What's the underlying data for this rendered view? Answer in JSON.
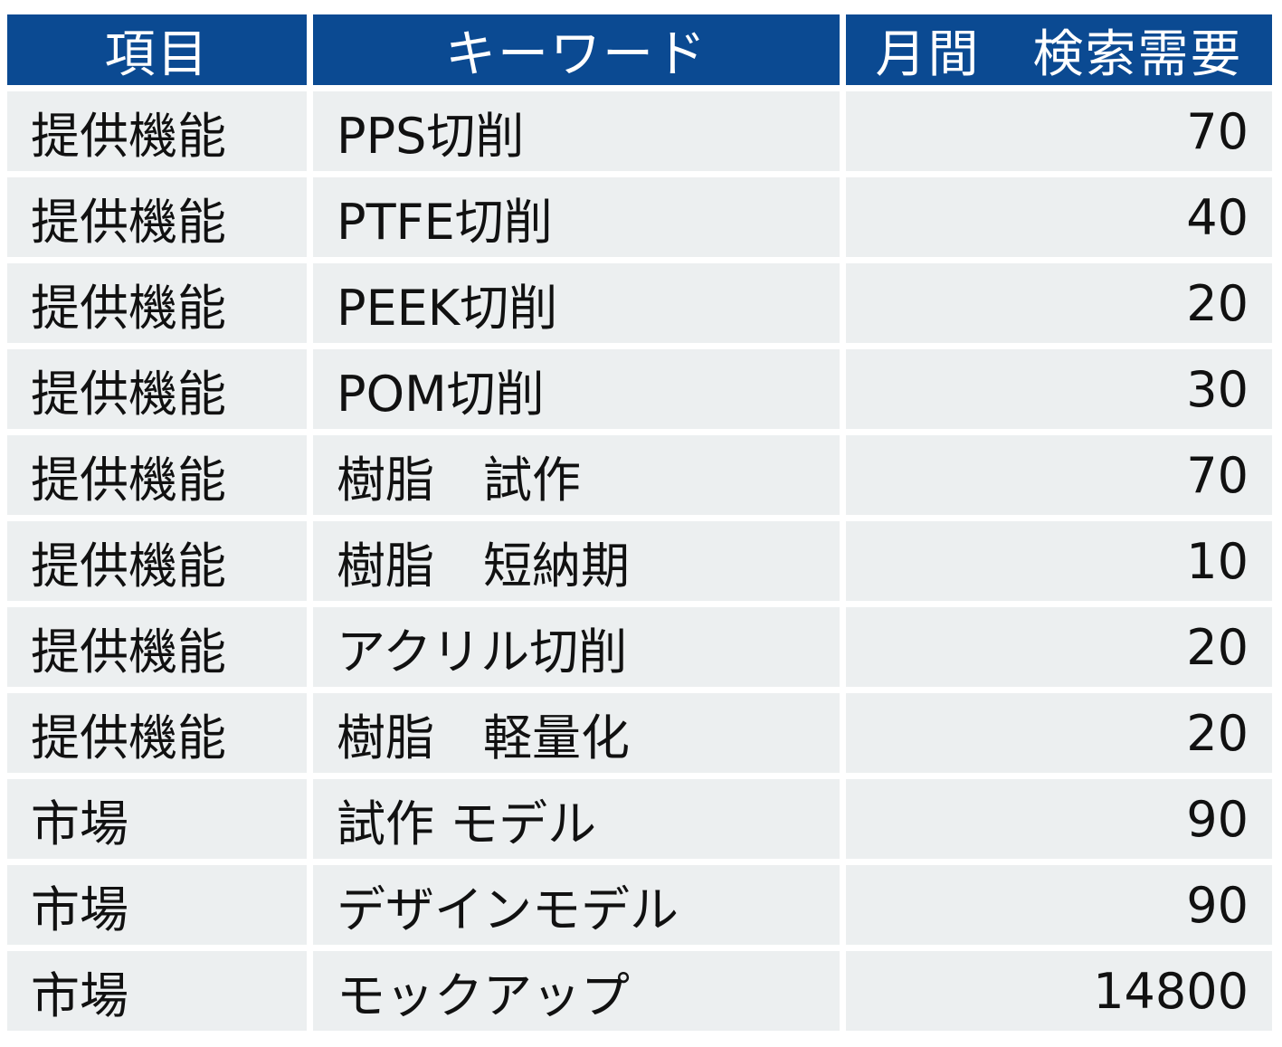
{
  "table": {
    "headers": [
      "項目",
      "キーワード",
      "月間　検索需要"
    ],
    "rows": [
      {
        "category": "提供機能",
        "keyword": "PPS切削",
        "volume": "70"
      },
      {
        "category": "提供機能",
        "keyword": "PTFE切削",
        "volume": "40"
      },
      {
        "category": "提供機能",
        "keyword": "PEEK切削",
        "volume": "20"
      },
      {
        "category": "提供機能",
        "keyword": "POM切削",
        "volume": "30"
      },
      {
        "category": "提供機能",
        "keyword": "樹脂　試作",
        "volume": "70"
      },
      {
        "category": "提供機能",
        "keyword": "樹脂　短納期",
        "volume": "10"
      },
      {
        "category": "提供機能",
        "keyword": "アクリル切削",
        "volume": "20"
      },
      {
        "category": "提供機能",
        "keyword": "樹脂　軽量化",
        "volume": "20"
      },
      {
        "category": "市場",
        "keyword": "試作 モデル",
        "volume": "90"
      },
      {
        "category": "市場",
        "keyword": "デザインモデル",
        "volume": "90"
      },
      {
        "category": "市場",
        "keyword": "モックアップ",
        "volume": "14800"
      }
    ]
  },
  "colors": {
    "header_bg": "#0b4a92",
    "header_text": "#ffffff",
    "cell_bg": "#eceff0",
    "cell_text": "#111111"
  }
}
